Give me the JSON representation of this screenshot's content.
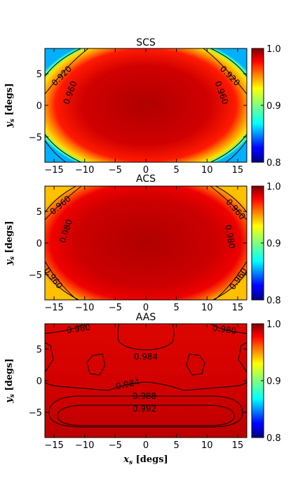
{
  "figure": {
    "xlabel_var": "x",
    "xlabel_sub": "s",
    "xlabel_unit": " [degs]",
    "ylabel_var": "y",
    "ylabel_sub": "s",
    "ylabel_unit": " [degs]"
  },
  "chart_data": [
    {
      "type": "heatmap",
      "title": "SCS",
      "xlim": [
        -16.5,
        16.5
      ],
      "ylim": [
        -9.0,
        9.0
      ],
      "xticks": [
        -15,
        -10,
        -5,
        0,
        5,
        10,
        15
      ],
      "yticks": [
        5,
        0,
        -5
      ],
      "colorbar": {
        "min": 0.8,
        "max": 1.0,
        "ticks": [
          "1.0",
          "0.9",
          "0.8"
        ],
        "colormap": "jet"
      },
      "contours": [
        {
          "level": "0.920",
          "shape": "corner-arcs"
        },
        {
          "level": "0.960",
          "shape": "ellipse"
        }
      ]
    },
    {
      "type": "heatmap",
      "title": "ACS",
      "xlim": [
        -16.5,
        16.5
      ],
      "ylim": [
        -9.0,
        9.0
      ],
      "xticks": [
        -15,
        -10,
        -5,
        0,
        5,
        10,
        15
      ],
      "yticks": [
        5,
        0,
        -5
      ],
      "colorbar": {
        "min": 0.8,
        "max": 1.0,
        "ticks": [
          "1.0",
          "0.9",
          "0.8"
        ],
        "colormap": "jet"
      },
      "contours": [
        {
          "level": "0.960",
          "shape": "corner-arcs"
        },
        {
          "level": "0.980",
          "shape": "ellipse"
        }
      ]
    },
    {
      "type": "heatmap",
      "title": "AAS",
      "xlim": [
        -16.5,
        16.5
      ],
      "ylim": [
        -9.0,
        9.0
      ],
      "xticks": [
        -15,
        -10,
        -5,
        0,
        5,
        10,
        15
      ],
      "yticks": [
        5,
        0,
        -5
      ],
      "colorbar": {
        "min": 0.8,
        "max": 1.0,
        "ticks": [
          "1.0",
          "0.9",
          "0.8"
        ],
        "colormap": "jet"
      },
      "contours": [
        {
          "level": "0.980"
        },
        {
          "level": "0.984"
        },
        {
          "level": "0.988"
        },
        {
          "level": "0.992"
        }
      ]
    }
  ]
}
